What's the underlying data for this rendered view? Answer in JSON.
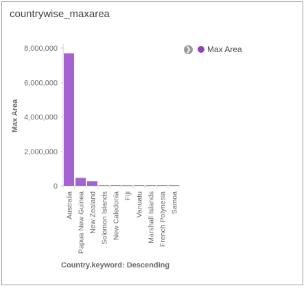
{
  "panel": {
    "title": "countrywise_maxarea"
  },
  "legend": {
    "toggle_icon": "chevron-right-icon",
    "label": "Max Area",
    "color": "#8e44ad"
  },
  "chart_data": {
    "type": "bar",
    "categories": [
      "Australia",
      "Papua New Guinea",
      "New Zealand",
      "Solomon Islands",
      "New Caledonia",
      "Fiji",
      "Vanuatu",
      "Marshall Islands",
      "French Polynesia",
      "Samoa"
    ],
    "series": [
      {
        "name": "Max Area",
        "values": [
          7692000,
          462840,
          268021,
          28896,
          18575,
          18274,
          12189,
          181,
          4167,
          2842
        ]
      }
    ],
    "ylabel": "Max Area",
    "xlabel": "Country.keyword: Descending",
    "yticks": [
      "0",
      "2,000,000",
      "4,000,000",
      "6,000,000",
      "8,000,000"
    ],
    "ylim": [
      0,
      8000000
    ],
    "grid": false,
    "bar_color": "#a463d1",
    "legend_position": "top-right"
  }
}
